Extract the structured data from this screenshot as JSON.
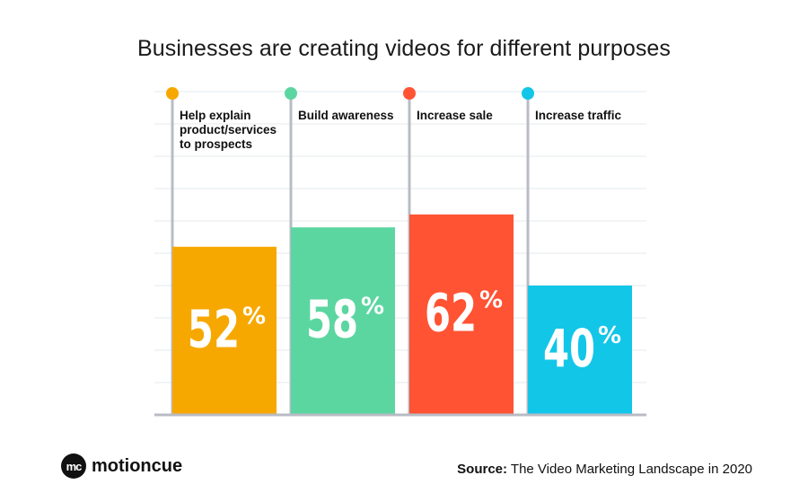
{
  "chart_data": {
    "type": "bar",
    "title": "Businesses are creating videos for different purposes",
    "categories": [
      "Help explain product/services to prospects",
      "Build awareness",
      "Increase sale",
      "Increase traffic"
    ],
    "label_lines": [
      [
        "Help explain",
        "product/services",
        "to prospects"
      ],
      [
        "Build awareness"
      ],
      [
        "Increase sale"
      ],
      [
        "Increase traffic"
      ]
    ],
    "values": [
      52,
      58,
      62,
      40
    ],
    "value_labels": [
      "52",
      "58",
      "62",
      "40"
    ],
    "unit": "%",
    "colors": [
      "#F7A800",
      "#5CD6A0",
      "#FF5334",
      "#12C6E8"
    ],
    "ylim": [
      0,
      100
    ],
    "grid": true,
    "xlabel": "",
    "ylabel": ""
  },
  "branding": {
    "logo_mark": "mc",
    "logo_text": "motioncue"
  },
  "source": {
    "label": "Source:",
    "text": "The Video Marketing Landscape in 2020"
  }
}
